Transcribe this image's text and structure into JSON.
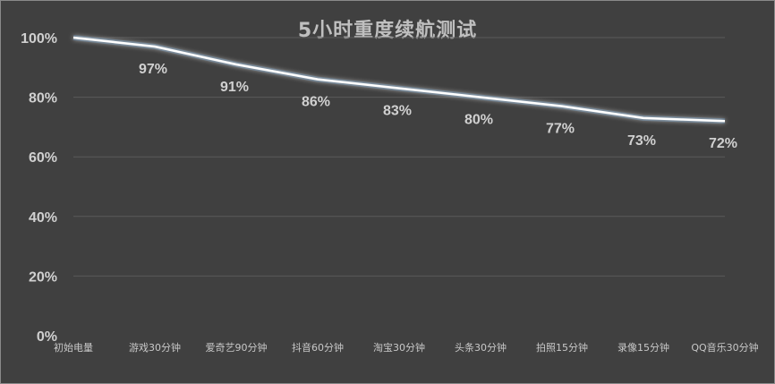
{
  "chart_data": {
    "type": "line",
    "title": "5小时重度续航测试",
    "categories": [
      "初始电量",
      "游戏30分钟",
      "爱奇艺90分钟",
      "抖音60分钟",
      "淘宝30分钟",
      "头条30分钟",
      "拍照15分钟",
      "录像15分钟",
      "QQ音乐30分钟"
    ],
    "series": [
      {
        "values": [
          100,
          97,
          91,
          86,
          83,
          80,
          77,
          73,
          72
        ],
        "data_labels": [
          "",
          "97%",
          "91%",
          "86%",
          "83%",
          "80%",
          "77%",
          "73%",
          "72%"
        ]
      }
    ],
    "y_ticks": [
      "0%",
      "20%",
      "40%",
      "60%",
      "80%",
      "100%"
    ],
    "ylim": [
      0,
      100
    ],
    "grid": true,
    "legend": "none",
    "colors": {
      "background": "#404040",
      "line": "#ffffff",
      "glow": "#5b9bd5",
      "grid": "#5a5a5a"
    }
  }
}
